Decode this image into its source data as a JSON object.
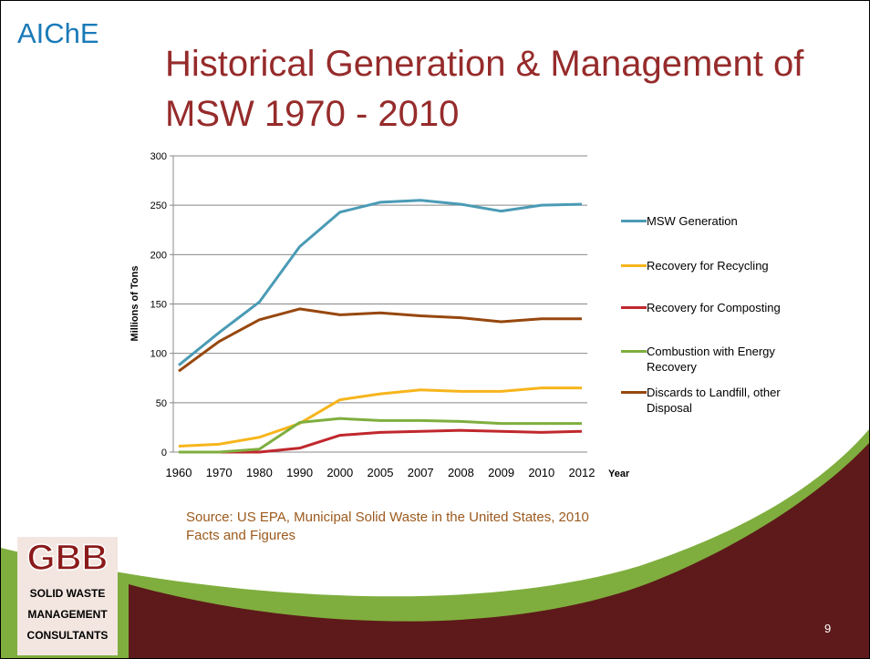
{
  "chart_data": {
    "type": "line",
    "title": "Historical Generation & Management of MSW 1970 - 2010",
    "y_label": "Millions of Tons",
    "x_label": "Year",
    "categories": [
      "1960",
      "1970",
      "1980",
      "1990",
      "2000",
      "2005",
      "2007",
      "2008",
      "2009",
      "2010",
      "2012"
    ],
    "series": [
      {
        "name": "MSW Generation",
        "color": "#4a9bb5",
        "values": [
          88,
          121,
          152,
          208,
          243,
          253,
          255,
          251,
          244,
          250,
          251
        ]
      },
      {
        "name": "Recovery for Recycling",
        "color": "#f7b51c",
        "values": [
          6,
          8,
          15,
          29,
          53,
          59,
          63,
          61.5,
          61.5,
          65,
          65
        ]
      },
      {
        "name": "Recovery for Composting",
        "color": "#c0282d",
        "values": [
          0,
          0,
          0,
          4,
          17,
          20,
          21,
          22,
          21,
          20,
          21
        ]
      },
      {
        "name": "Combustion with Energy Recovery",
        "color": "#7fae3e",
        "values": [
          0,
          0,
          3,
          30,
          34,
          32,
          32,
          31,
          29,
          29,
          29
        ]
      },
      {
        "name": "Discards to Landfill, other Disposal",
        "color": "#97470e",
        "values": [
          82,
          112,
          134,
          145,
          139,
          141,
          138,
          136,
          132,
          135,
          135
        ]
      }
    ],
    "ylim": [
      0,
      300
    ],
    "yticks": [
      0,
      50,
      100,
      150,
      200,
      250,
      300
    ],
    "grid": true,
    "legend": "right"
  },
  "source": "Source: US EPA, Municipal Solid Waste in the United States, 2010 Facts and Figures",
  "logo": "AIChE",
  "gbb_logo": {
    "mark": "GBB",
    "lines": [
      "SOLID WASTE",
      "MANAGEMENT",
      "CONSULTANTS"
    ]
  },
  "page_number": "9"
}
